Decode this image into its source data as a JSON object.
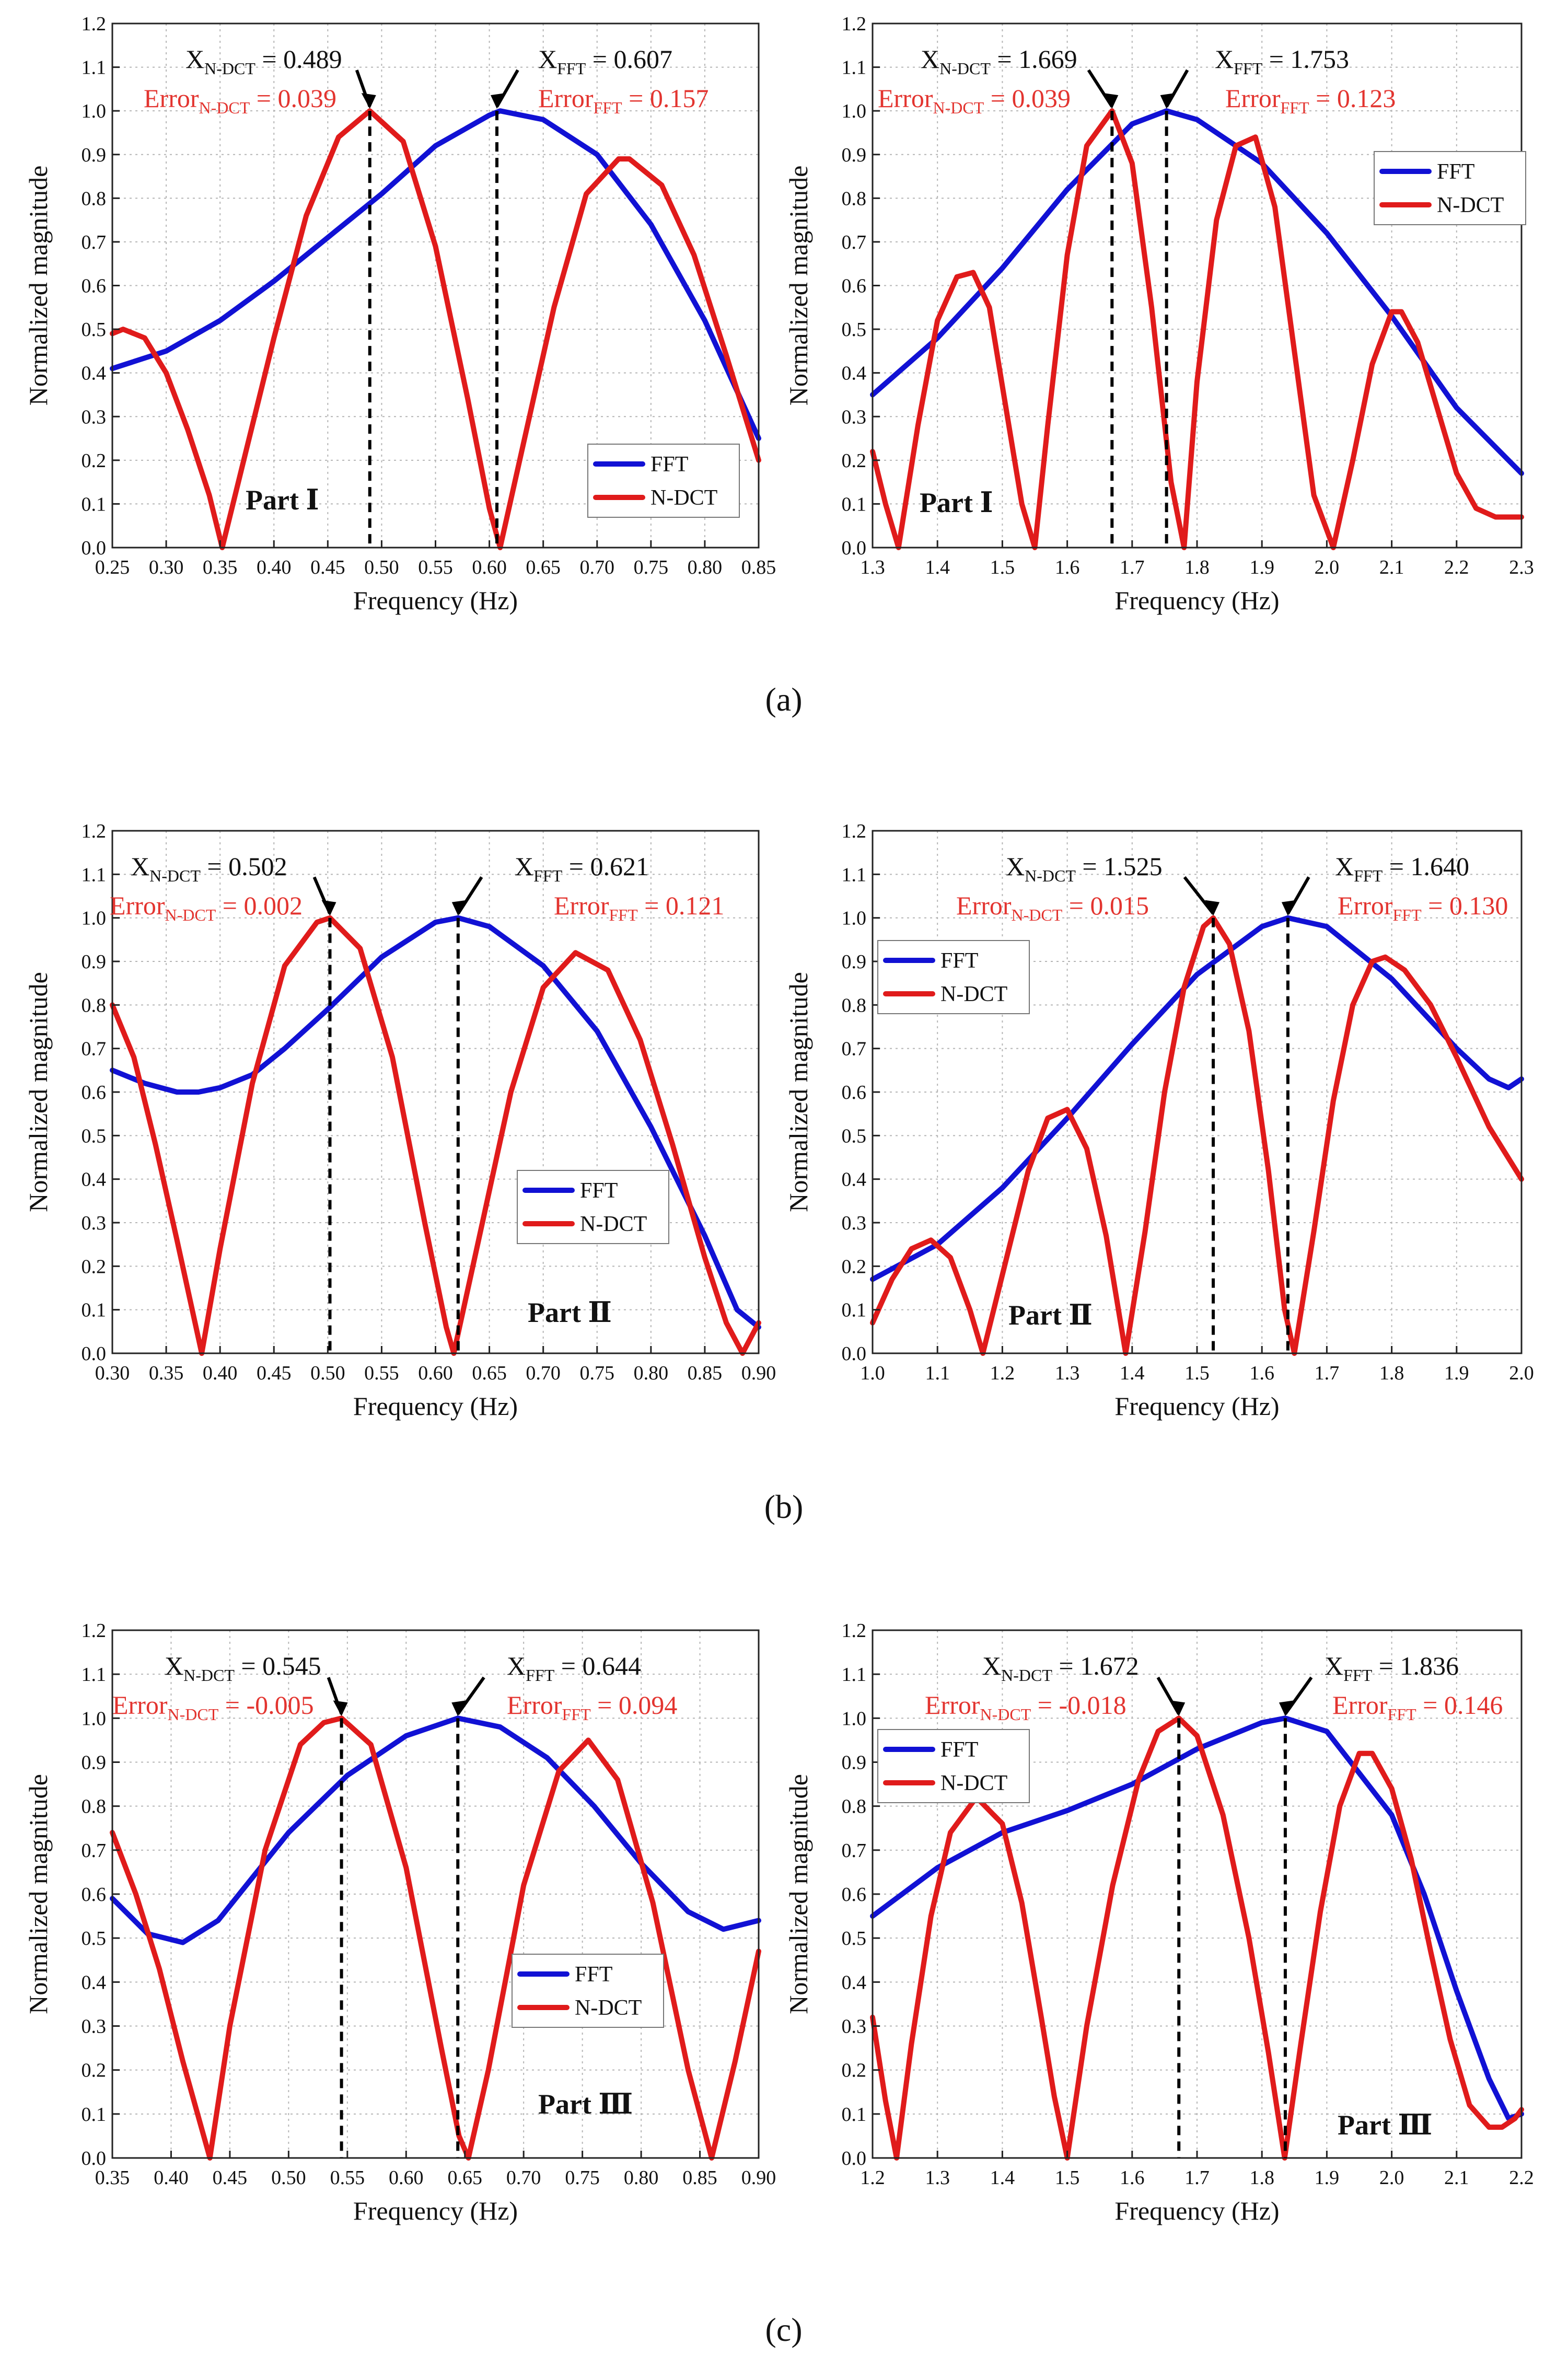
{
  "captions": [
    "(a)",
    "(b)",
    "(c)"
  ],
  "chart_data": [
    {
      "type": "line",
      "xlabel": "Frequency (Hz)",
      "ylabel": "Normalized magnitude",
      "xlim": [
        0.25,
        0.85
      ],
      "ylim": [
        0,
        1.2
      ],
      "xticks": [
        "0.25",
        "0.30",
        "0.35",
        "0.40",
        "0.45",
        "0.50",
        "0.55",
        "0.60",
        "0.65",
        "0.70",
        "0.75",
        "0.80",
        "0.85"
      ],
      "yticks": [
        "0.0",
        "0.1",
        "0.2",
        "0.3",
        "0.4",
        "0.5",
        "0.6",
        "0.7",
        "0.8",
        "0.9",
        "1.0",
        "1.1",
        "1.2"
      ],
      "grid": true,
      "legend": {
        "position": "bottom-right",
        "entries": [
          "FFT",
          "N-DCT"
        ]
      },
      "part_label": "Part Ⅰ",
      "annotations": {
        "ndct_x": {
          "main": "X",
          "sub": "N-DCT",
          "value": " = 0.489"
        },
        "fft_x": {
          "main": "X",
          "sub": "FFT",
          "value": " = 0.607"
        },
        "ndct_error": {
          "main": "Error",
          "sub": "N-DCT",
          "value": " = 0.039"
        },
        "fft_error": {
          "main": "Error",
          "sub": "FFT",
          "value": " = 0.157"
        }
      },
      "peaks": {
        "ndct": 0.489,
        "fft": 0.607
      },
      "series": [
        {
          "name": "FFT",
          "color": "#1111d4",
          "x": [
            0.25,
            0.3,
            0.35,
            0.4,
            0.45,
            0.5,
            0.55,
            0.6,
            0.61,
            0.65,
            0.7,
            0.75,
            0.8,
            0.85
          ],
          "y": [
            0.41,
            0.45,
            0.52,
            0.61,
            0.71,
            0.81,
            0.92,
            0.99,
            1.0,
            0.98,
            0.9,
            0.74,
            0.52,
            0.25
          ]
        },
        {
          "name": "N-DCT",
          "color": "#e01b1b",
          "x": [
            0.25,
            0.26,
            0.28,
            0.3,
            0.32,
            0.34,
            0.352,
            0.37,
            0.4,
            0.43,
            0.46,
            0.489,
            0.52,
            0.55,
            0.58,
            0.6,
            0.61,
            0.63,
            0.66,
            0.69,
            0.72,
            0.73,
            0.76,
            0.79,
            0.82,
            0.85
          ],
          "y": [
            0.49,
            0.5,
            0.48,
            0.4,
            0.27,
            0.12,
            0.0,
            0.18,
            0.48,
            0.76,
            0.94,
            1.0,
            0.93,
            0.69,
            0.34,
            0.09,
            0.0,
            0.22,
            0.55,
            0.81,
            0.89,
            0.89,
            0.83,
            0.67,
            0.44,
            0.2
          ]
        }
      ]
    },
    {
      "type": "line",
      "xlabel": "Frequency (Hz)",
      "ylabel": "Normalized magnitude",
      "xlim": [
        1.3,
        2.3
      ],
      "ylim": [
        0,
        1.2
      ],
      "xticks": [
        "1.3",
        "1.4",
        "1.5",
        "1.6",
        "1.7",
        "1.8",
        "1.9",
        "2.0",
        "2.1",
        "2.2",
        "2.3"
      ],
      "yticks": [
        "0.0",
        "0.1",
        "0.2",
        "0.3",
        "0.4",
        "0.5",
        "0.6",
        "0.7",
        "0.8",
        "0.9",
        "1.0",
        "1.1",
        "1.2"
      ],
      "grid": true,
      "legend": {
        "position": "top-right",
        "entries": [
          "FFT",
          "N-DCT"
        ]
      },
      "part_label": "Part Ⅰ",
      "annotations": {
        "ndct_x": {
          "main": "X",
          "sub": "N-DCT",
          "value": " = 1.669"
        },
        "fft_x": {
          "main": "X",
          "sub": "FFT",
          "value": " = 1.753"
        },
        "ndct_error": {
          "main": "Error",
          "sub": "N-DCT",
          "value": " = 0.039"
        },
        "fft_error": {
          "main": "Error",
          "sub": "FFT",
          "value": " = 0.123"
        }
      },
      "peaks": {
        "ndct": 1.669,
        "fft": 1.753
      },
      "series": [
        {
          "name": "FFT",
          "color": "#1111d4",
          "x": [
            1.3,
            1.4,
            1.5,
            1.6,
            1.7,
            1.753,
            1.8,
            1.9,
            2.0,
            2.1,
            2.2,
            2.3
          ],
          "y": [
            0.35,
            0.48,
            0.64,
            0.82,
            0.97,
            1.0,
            0.98,
            0.88,
            0.72,
            0.53,
            0.32,
            0.17
          ]
        },
        {
          "name": "N-DCT",
          "color": "#e01b1b",
          "x": [
            1.3,
            1.32,
            1.34,
            1.37,
            1.4,
            1.43,
            1.455,
            1.48,
            1.51,
            1.53,
            1.55,
            1.57,
            1.6,
            1.63,
            1.669,
            1.7,
            1.73,
            1.76,
            1.78,
            1.8,
            1.83,
            1.86,
            1.89,
            1.92,
            1.95,
            1.98,
            2.01,
            2.04,
            2.07,
            2.1,
            2.115,
            2.14,
            2.17,
            2.2,
            2.23,
            2.26,
            2.28,
            2.3
          ],
          "y": [
            0.22,
            0.1,
            0.0,
            0.28,
            0.52,
            0.62,
            0.63,
            0.55,
            0.28,
            0.1,
            0.0,
            0.28,
            0.67,
            0.92,
            1.0,
            0.88,
            0.55,
            0.15,
            0.0,
            0.38,
            0.75,
            0.92,
            0.94,
            0.78,
            0.45,
            0.12,
            0.0,
            0.2,
            0.42,
            0.54,
            0.54,
            0.47,
            0.32,
            0.17,
            0.09,
            0.07,
            0.07,
            0.07
          ]
        }
      ]
    },
    {
      "type": "line",
      "xlabel": "Frequency (Hz)",
      "ylabel": "Normalized magnitude",
      "xlim": [
        0.3,
        0.9
      ],
      "ylim": [
        0,
        1.2
      ],
      "xticks": [
        "0.30",
        "0.35",
        "0.40",
        "0.45",
        "0.50",
        "0.55",
        "0.60",
        "0.65",
        "0.70",
        "0.75",
        "0.80",
        "0.85",
        "0.90"
      ],
      "yticks": [
        "0.0",
        "0.1",
        "0.2",
        "0.3",
        "0.4",
        "0.5",
        "0.6",
        "0.7",
        "0.8",
        "0.9",
        "1.0",
        "1.1",
        "1.2"
      ],
      "grid": true,
      "legend": {
        "position": "center-right",
        "entries": [
          "FFT",
          "N-DCT"
        ]
      },
      "part_label": "Part Ⅱ",
      "annotations": {
        "ndct_x": {
          "main": "X",
          "sub": "N-DCT",
          "value": " = 0.502"
        },
        "fft_x": {
          "main": "X",
          "sub": "FFT",
          "value": " = 0.621"
        },
        "ndct_error": {
          "main": "Error",
          "sub": "N-DCT",
          "value": " = 0.002"
        },
        "fft_error": {
          "main": "Error",
          "sub": "FFT",
          "value": " = 0.121"
        }
      },
      "peaks": {
        "ndct": 0.502,
        "fft": 0.621
      },
      "series": [
        {
          "name": "FFT",
          "color": "#1111d4",
          "x": [
            0.3,
            0.33,
            0.36,
            0.38,
            0.4,
            0.43,
            0.46,
            0.5,
            0.55,
            0.6,
            0.621,
            0.65,
            0.7,
            0.75,
            0.8,
            0.85,
            0.88,
            0.9
          ],
          "y": [
            0.65,
            0.62,
            0.6,
            0.6,
            0.61,
            0.64,
            0.7,
            0.79,
            0.91,
            0.99,
            1.0,
            0.98,
            0.89,
            0.74,
            0.52,
            0.27,
            0.1,
            0.06
          ]
        },
        {
          "name": "N-DCT",
          "color": "#e01b1b",
          "x": [
            0.3,
            0.32,
            0.34,
            0.36,
            0.383,
            0.4,
            0.43,
            0.46,
            0.49,
            0.502,
            0.53,
            0.56,
            0.59,
            0.61,
            0.617,
            0.64,
            0.67,
            0.7,
            0.73,
            0.76,
            0.79,
            0.82,
            0.85,
            0.87,
            0.885,
            0.9
          ],
          "y": [
            0.8,
            0.68,
            0.48,
            0.26,
            0.0,
            0.24,
            0.62,
            0.89,
            0.99,
            1.0,
            0.93,
            0.68,
            0.3,
            0.06,
            0.0,
            0.26,
            0.6,
            0.84,
            0.92,
            0.88,
            0.72,
            0.48,
            0.22,
            0.07,
            0.0,
            0.07
          ]
        }
      ]
    },
    {
      "type": "line",
      "xlabel": "Frequency (Hz)",
      "ylabel": "Normalized magnitude",
      "xlim": [
        1.0,
        2.0
      ],
      "ylim": [
        0,
        1.2
      ],
      "xticks": [
        "1.0",
        "1.1",
        "1.2",
        "1.3",
        "1.4",
        "1.5",
        "1.6",
        "1.7",
        "1.8",
        "1.9",
        "2.0"
      ],
      "yticks": [
        "0.0",
        "0.1",
        "0.2",
        "0.3",
        "0.4",
        "0.5",
        "0.6",
        "0.7",
        "0.8",
        "0.9",
        "1.0",
        "1.1",
        "1.2"
      ],
      "grid": true,
      "legend": {
        "position": "top-left",
        "entries": [
          "FFT",
          "N-DCT"
        ]
      },
      "part_label": "Part Ⅱ",
      "annotations": {
        "ndct_x": {
          "main": "X",
          "sub": "N-DCT",
          "value": " = 1.525"
        },
        "fft_x": {
          "main": "X",
          "sub": "FFT",
          "value": " = 1.640"
        },
        "ndct_error": {
          "main": "Error",
          "sub": "N-DCT",
          "value": " = 0.015"
        },
        "fft_error": {
          "main": "Error",
          "sub": "FFT",
          "value": " = 0.130"
        }
      },
      "peaks": {
        "ndct": 1.525,
        "fft": 1.64
      },
      "series": [
        {
          "name": "FFT",
          "color": "#1111d4",
          "x": [
            1.0,
            1.1,
            1.2,
            1.3,
            1.4,
            1.5,
            1.6,
            1.64,
            1.7,
            1.8,
            1.9,
            1.95,
            1.98,
            2.0
          ],
          "y": [
            0.17,
            0.25,
            0.38,
            0.54,
            0.71,
            0.87,
            0.98,
            1.0,
            0.98,
            0.86,
            0.7,
            0.63,
            0.61,
            0.63
          ]
        },
        {
          "name": "N-DCT",
          "color": "#e01b1b",
          "x": [
            1.0,
            1.03,
            1.06,
            1.09,
            1.12,
            1.15,
            1.17,
            1.2,
            1.24,
            1.27,
            1.3,
            1.33,
            1.36,
            1.39,
            1.42,
            1.45,
            1.48,
            1.51,
            1.525,
            1.55,
            1.58,
            1.61,
            1.635,
            1.65,
            1.68,
            1.71,
            1.74,
            1.77,
            1.79,
            1.82,
            1.86,
            1.9,
            1.95,
            2.0
          ],
          "y": [
            0.07,
            0.17,
            0.24,
            0.26,
            0.22,
            0.1,
            0.0,
            0.18,
            0.42,
            0.54,
            0.56,
            0.47,
            0.27,
            0.0,
            0.28,
            0.6,
            0.84,
            0.98,
            1.0,
            0.94,
            0.74,
            0.42,
            0.1,
            0.0,
            0.28,
            0.58,
            0.8,
            0.9,
            0.91,
            0.88,
            0.8,
            0.68,
            0.52,
            0.4
          ]
        }
      ]
    },
    {
      "type": "line",
      "xlabel": "Frequency (Hz)",
      "ylabel": "Normalized magnitude",
      "xlim": [
        0.35,
        0.9
      ],
      "ylim": [
        0,
        1.2
      ],
      "xticks": [
        "0.35",
        "0.40",
        "0.45",
        "0.50",
        "0.55",
        "0.60",
        "0.65",
        "0.70",
        "0.75",
        "0.80",
        "0.85",
        "0.90"
      ],
      "yticks": [
        "0.0",
        "0.1",
        "0.2",
        "0.3",
        "0.4",
        "0.5",
        "0.6",
        "0.7",
        "0.8",
        "0.9",
        "1.0",
        "1.1",
        "1.2"
      ],
      "grid": true,
      "legend": {
        "position": "center",
        "entries": [
          "FFT",
          "N-DCT"
        ]
      },
      "part_label": "Part Ⅲ",
      "annotations": {
        "ndct_x": {
          "main": "X",
          "sub": "N-DCT",
          "value": " = 0.545"
        },
        "fft_x": {
          "main": "X",
          "sub": "FFT",
          "value": " = 0.644"
        },
        "ndct_error": {
          "main": "Error",
          "sub": "N-DCT",
          "value": " = -0.005"
        },
        "fft_error": {
          "main": "Error",
          "sub": "FFT",
          "value": " = 0.094"
        }
      },
      "peaks": {
        "ndct": 0.545,
        "fft": 0.644
      },
      "series": [
        {
          "name": "FFT",
          "color": "#1111d4",
          "x": [
            0.35,
            0.38,
            0.41,
            0.44,
            0.47,
            0.5,
            0.55,
            0.6,
            0.644,
            0.68,
            0.72,
            0.76,
            0.8,
            0.84,
            0.87,
            0.9
          ],
          "y": [
            0.59,
            0.51,
            0.49,
            0.54,
            0.64,
            0.74,
            0.87,
            0.96,
            1.0,
            0.98,
            0.91,
            0.8,
            0.67,
            0.56,
            0.52,
            0.54
          ]
        },
        {
          "name": "N-DCT",
          "color": "#e01b1b",
          "x": [
            0.35,
            0.37,
            0.39,
            0.41,
            0.433,
            0.45,
            0.48,
            0.51,
            0.53,
            0.545,
            0.57,
            0.6,
            0.63,
            0.645,
            0.653,
            0.67,
            0.7,
            0.73,
            0.755,
            0.78,
            0.81,
            0.84,
            0.86,
            0.88,
            0.9
          ],
          "y": [
            0.74,
            0.6,
            0.43,
            0.22,
            0.0,
            0.3,
            0.7,
            0.94,
            0.99,
            1.0,
            0.94,
            0.66,
            0.25,
            0.05,
            0.0,
            0.2,
            0.62,
            0.88,
            0.95,
            0.86,
            0.58,
            0.2,
            0.0,
            0.22,
            0.47
          ]
        }
      ]
    },
    {
      "type": "line",
      "xlabel": "Frequency (Hz)",
      "ylabel": "Normalized magnitude",
      "xlim": [
        1.2,
        2.2
      ],
      "ylim": [
        0,
        1.2
      ],
      "xticks": [
        "1.2",
        "1.3",
        "1.4",
        "1.5",
        "1.6",
        "1.7",
        "1.8",
        "1.9",
        "2.0",
        "2.1",
        "2.2"
      ],
      "yticks": [
        "0.0",
        "0.1",
        "0.2",
        "0.3",
        "0.4",
        "0.5",
        "0.6",
        "0.7",
        "0.8",
        "0.9",
        "1.0",
        "1.1",
        "1.2"
      ],
      "grid": true,
      "legend": {
        "position": "top-left",
        "entries": [
          "FFT",
          "N-DCT"
        ]
      },
      "part_label": "Part Ⅲ",
      "annotations": {
        "ndct_x": {
          "main": "X",
          "sub": "N-DCT",
          "value": " = 1.672"
        },
        "fft_x": {
          "main": "X",
          "sub": "FFT",
          "value": " = 1.836"
        },
        "ndct_error": {
          "main": "Error",
          "sub": "N-DCT",
          "value": " = -0.018"
        },
        "fft_error": {
          "main": "Error",
          "sub": "FFT",
          "value": " = 0.146"
        }
      },
      "peaks": {
        "ndct": 1.672,
        "fft": 1.836
      },
      "series": [
        {
          "name": "FFT",
          "color": "#1111d4",
          "x": [
            1.2,
            1.3,
            1.4,
            1.5,
            1.6,
            1.7,
            1.8,
            1.836,
            1.9,
            2.0,
            2.05,
            2.1,
            2.15,
            2.18,
            2.2
          ],
          "y": [
            0.55,
            0.66,
            0.74,
            0.79,
            0.85,
            0.93,
            0.99,
            1.0,
            0.97,
            0.78,
            0.6,
            0.38,
            0.18,
            0.09,
            0.1
          ]
        },
        {
          "name": "N-DCT",
          "color": "#e01b1b",
          "x": [
            1.2,
            1.22,
            1.237,
            1.26,
            1.29,
            1.32,
            1.36,
            1.4,
            1.43,
            1.46,
            1.48,
            1.5,
            1.53,
            1.57,
            1.61,
            1.64,
            1.672,
            1.7,
            1.74,
            1.78,
            1.81,
            1.835,
            1.86,
            1.89,
            1.92,
            1.95,
            1.97,
            2.0,
            2.03,
            2.06,
            2.09,
            2.12,
            2.15,
            2.17,
            2.19,
            2.2
          ],
          "y": [
            0.32,
            0.13,
            0.0,
            0.26,
            0.55,
            0.74,
            0.82,
            0.76,
            0.58,
            0.32,
            0.14,
            0.0,
            0.3,
            0.62,
            0.86,
            0.97,
            1.0,
            0.96,
            0.78,
            0.5,
            0.24,
            0.0,
            0.26,
            0.56,
            0.8,
            0.92,
            0.92,
            0.84,
            0.68,
            0.47,
            0.27,
            0.12,
            0.07,
            0.07,
            0.09,
            0.11
          ]
        }
      ]
    }
  ]
}
